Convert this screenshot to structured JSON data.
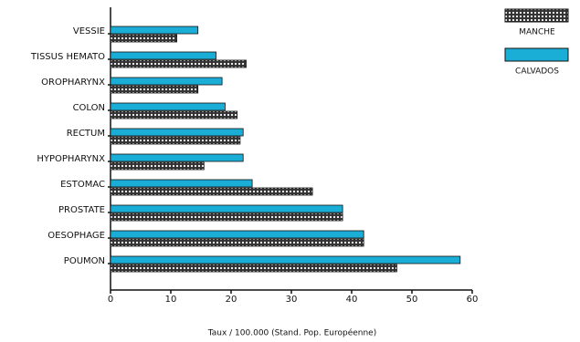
{
  "chart_data": {
    "type": "bar",
    "orientation": "horizontal",
    "x_label": "Taux / 100.000 (Stand. Pop. Européenne)",
    "categories": [
      "VESSIE",
      "TISSUS HEMATO",
      "OROPHARYNX",
      "COLON",
      "RECTUM",
      "HYPOPHARYNX",
      "ESTOMAC",
      "PROSTATE",
      "OESOPHAGE",
      "POUMON"
    ],
    "series": [
      {
        "name": "MANCHE",
        "color": "#333333",
        "pattern": "dots",
        "values": [
          11,
          22.5,
          14.5,
          21,
          21.5,
          15.5,
          33.5,
          38.5,
          42,
          47.5
        ]
      },
      {
        "name": "CALVADOS",
        "color": "#1aaed6",
        "values": [
          14.5,
          17.5,
          18.5,
          19,
          22,
          22,
          23.5,
          38.5,
          42,
          58
        ]
      }
    ],
    "xlim": [
      0,
      60
    ],
    "xticks": [
      0,
      10,
      20,
      30,
      40,
      50,
      60
    ],
    "legend": "top-right"
  }
}
